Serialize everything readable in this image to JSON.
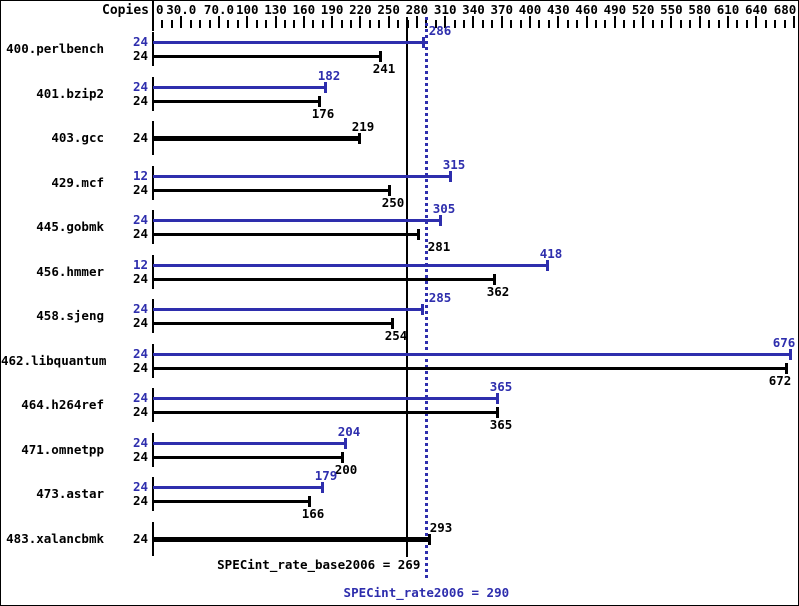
{
  "header": {
    "copies_label": "Copies"
  },
  "colors": {
    "peak_blue": "#2e2ead",
    "base_black": "#000000",
    "background": "#ffffff"
  },
  "footer": {
    "base_line_label": "SPECint_rate_base2006 = 269",
    "peak_line_label": "SPECint_rate2006 = 290"
  },
  "chart_data": {
    "type": "bar",
    "orientation": "horizontal",
    "copies_column_header": "Copies",
    "x_axis": {
      "min": 0,
      "max": 690,
      "minor_tick_step": 10,
      "labeled_ticks": [
        {
          "value": 0,
          "label": "0"
        },
        {
          "value": 30,
          "label": "30.0"
        },
        {
          "value": 70,
          "label": "70.0"
        },
        {
          "value": 100,
          "label": "100"
        },
        {
          "value": 130,
          "label": "130"
        },
        {
          "value": 160,
          "label": "160"
        },
        {
          "value": 190,
          "label": "190"
        },
        {
          "value": 220,
          "label": "220"
        },
        {
          "value": 250,
          "label": "250"
        },
        {
          "value": 280,
          "label": "280"
        },
        {
          "value": 310,
          "label": "310"
        },
        {
          "value": 340,
          "label": "340"
        },
        {
          "value": 370,
          "label": "370"
        },
        {
          "value": 400,
          "label": "400"
        },
        {
          "value": 430,
          "label": "430"
        },
        {
          "value": 460,
          "label": "460"
        },
        {
          "value": 490,
          "label": "490"
        },
        {
          "value": 520,
          "label": "520"
        },
        {
          "value": 550,
          "label": "550"
        },
        {
          "value": 580,
          "label": "580"
        },
        {
          "value": 610,
          "label": "610"
        },
        {
          "value": 640,
          "label": "640"
        },
        {
          "value": 680,
          "label": "680"
        }
      ]
    },
    "benchmarks": [
      {
        "name": "400.perlbench",
        "bars": [
          {
            "kind": "peak",
            "copies": 24,
            "value": 286,
            "label_dx": 17
          },
          {
            "kind": "base",
            "copies": 24,
            "value": 241
          }
        ]
      },
      {
        "name": "401.bzip2",
        "bars": [
          {
            "kind": "peak",
            "copies": 24,
            "value": 182
          },
          {
            "kind": "base",
            "copies": 24,
            "value": 176
          }
        ]
      },
      {
        "name": "403.gcc",
        "bars": [
          {
            "kind": "base_peak",
            "copies": 24,
            "value": 219
          }
        ]
      },
      {
        "name": "429.mcf",
        "bars": [
          {
            "kind": "peak",
            "copies": 12,
            "value": 315
          },
          {
            "kind": "base",
            "copies": 24,
            "value": 250
          }
        ]
      },
      {
        "name": "445.gobmk",
        "bars": [
          {
            "kind": "peak",
            "copies": 24,
            "value": 305
          },
          {
            "kind": "base",
            "copies": 24,
            "value": 281,
            "label_dx": 21
          }
        ]
      },
      {
        "name": "456.hmmer",
        "bars": [
          {
            "kind": "peak",
            "copies": 12,
            "value": 418
          },
          {
            "kind": "base",
            "copies": 24,
            "value": 362
          }
        ]
      },
      {
        "name": "458.sjeng",
        "bars": [
          {
            "kind": "peak",
            "copies": 24,
            "value": 285,
            "label_dx": 18
          },
          {
            "kind": "base",
            "copies": 24,
            "value": 254
          }
        ]
      },
      {
        "name": "462.libquantum",
        "bars": [
          {
            "kind": "peak",
            "copies": 24,
            "value": 676,
            "label_dx": -6
          },
          {
            "kind": "base",
            "copies": 24,
            "value": 672,
            "label_dx": -6
          }
        ]
      },
      {
        "name": "464.h264ref",
        "bars": [
          {
            "kind": "peak",
            "copies": 24,
            "value": 365
          },
          {
            "kind": "base",
            "copies": 24,
            "value": 365
          }
        ]
      },
      {
        "name": "471.omnetpp",
        "bars": [
          {
            "kind": "peak",
            "copies": 24,
            "value": 204
          },
          {
            "kind": "base",
            "copies": 24,
            "value": 200
          }
        ]
      },
      {
        "name": "473.astar",
        "bars": [
          {
            "kind": "peak",
            "copies": 24,
            "value": 179
          },
          {
            "kind": "base",
            "copies": 24,
            "value": 166
          }
        ]
      },
      {
        "name": "483.xalancbmk",
        "bars": [
          {
            "kind": "base_peak",
            "copies": 24,
            "value": 293,
            "label_dx": 12
          }
        ]
      }
    ],
    "reference_lines": [
      {
        "name": "SPECint_rate_base2006",
        "value": 269,
        "style": "solid",
        "color": "#000000"
      },
      {
        "name": "SPECint_rate2006",
        "value": 290,
        "style": "dotted",
        "color": "#2e2ead"
      }
    ]
  }
}
